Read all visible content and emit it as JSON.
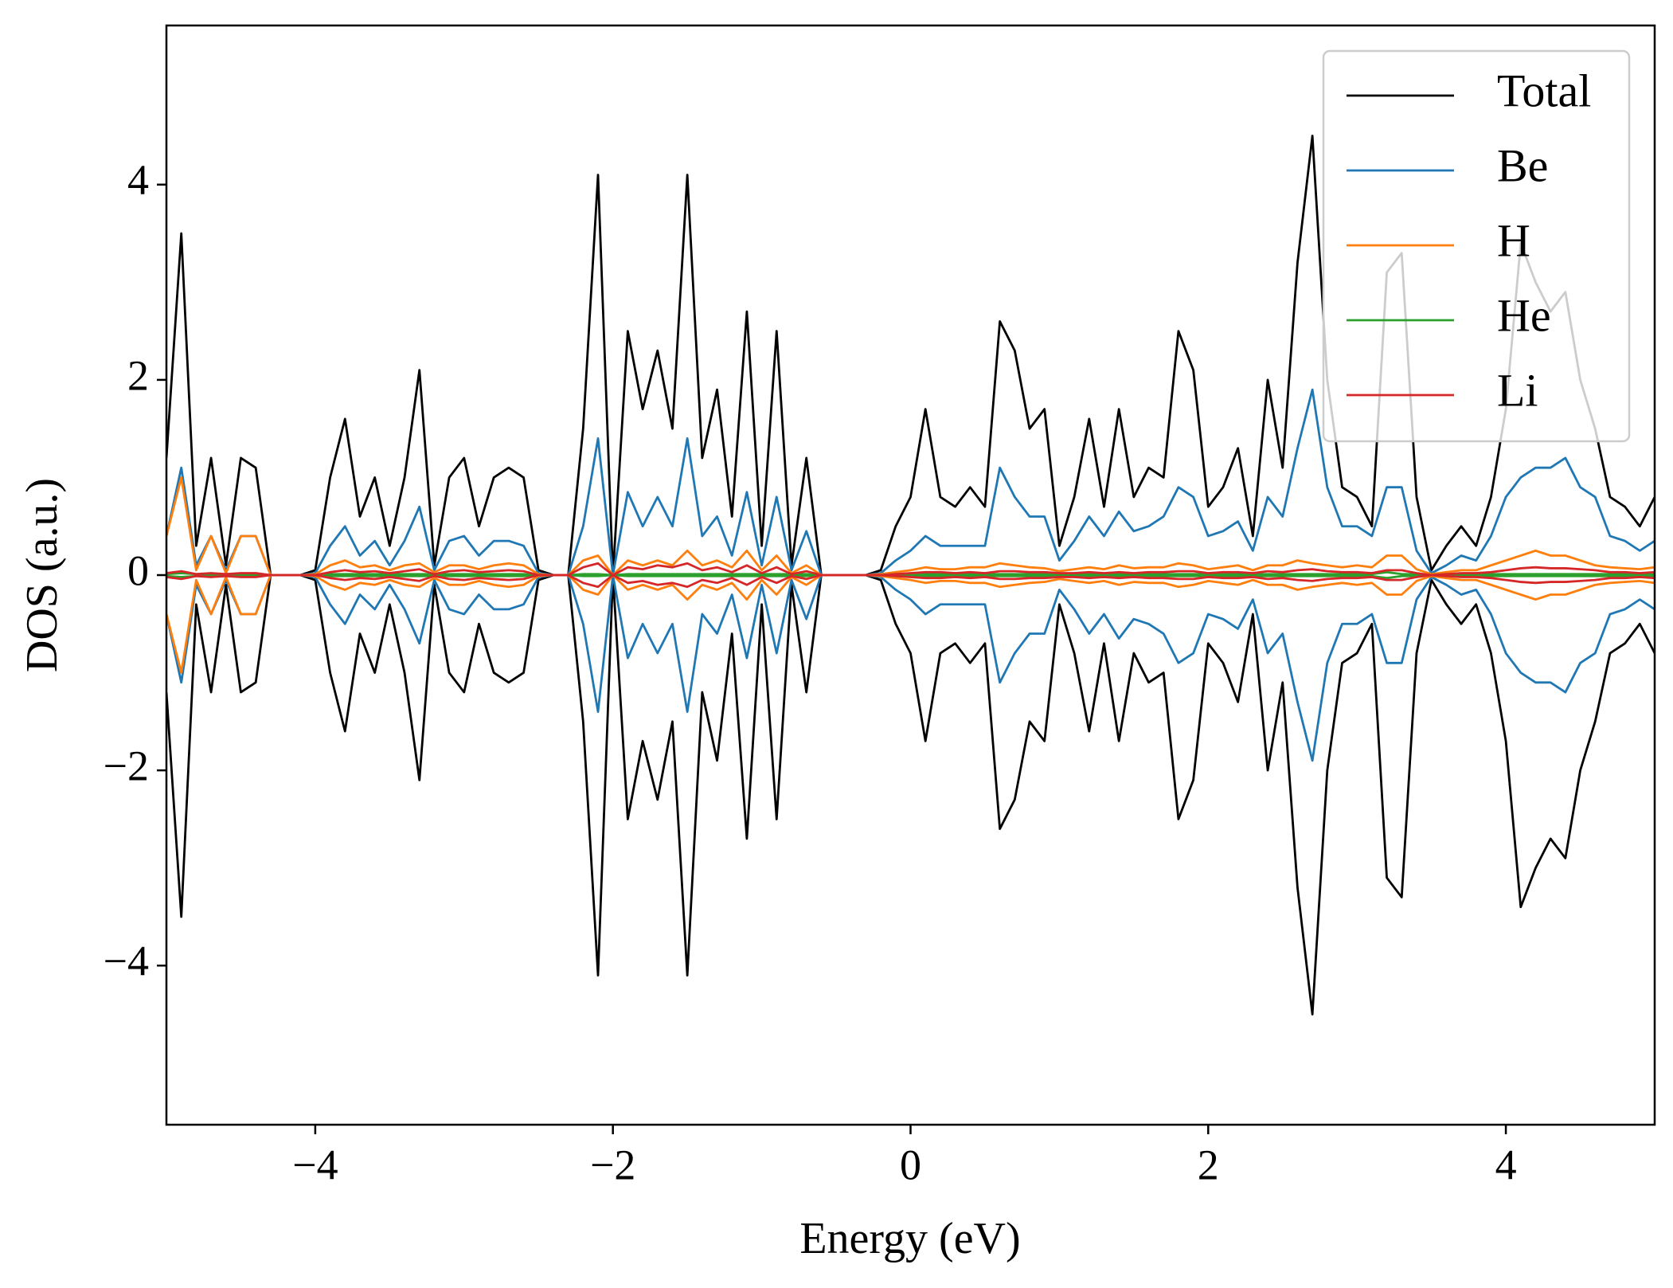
{
  "chart_data": {
    "type": "line",
    "x_label": "Energy (eV)",
    "y_label": "DOS (a.u.)",
    "xlim": [
      -5,
      5
    ],
    "ylim": [
      -5.63,
      5.63
    ],
    "xticks": [
      {
        "value": -4,
        "label": "−4"
      },
      {
        "value": -2,
        "label": "−2"
      },
      0,
      2,
      4
    ],
    "yticks": [
      {
        "value": -4,
        "label": "−4"
      },
      {
        "value": -2,
        "label": "−2"
      },
      0,
      2,
      4
    ],
    "legend": "upper right",
    "x": [
      -5,
      -4.9,
      -4.8,
      -4.7,
      -4.6,
      -4.5,
      -4.4,
      -4.3,
      -4.2,
      -4.1,
      -4,
      -3.9,
      -3.8,
      -3.7,
      -3.6,
      -3.5,
      -3.4,
      -3.3,
      -3.2,
      -3.1,
      -3,
      -2.9,
      -2.8,
      -2.7,
      -2.6,
      -2.5,
      -2.4,
      -2.3,
      -2.2,
      -2.1,
      -2,
      -1.9,
      -1.8,
      -1.7,
      -1.6,
      -1.5,
      -1.4,
      -1.3,
      -1.2,
      -1.1,
      -1,
      -0.9,
      -0.8,
      -0.7,
      -0.6,
      -0.5,
      -0.4,
      -0.3,
      -0.2,
      -0.1,
      0,
      0.1,
      0.2,
      0.3,
      0.4,
      0.5,
      0.6,
      0.7,
      0.8,
      0.9,
      1,
      1.1,
      1.2,
      1.3,
      1.4,
      1.5,
      1.6,
      1.7,
      1.8,
      1.9,
      2,
      2.1,
      2.2,
      2.3,
      2.4,
      2.5,
      2.6,
      2.7,
      2.8,
      2.9,
      3,
      3.1,
      3.2,
      3.3,
      3.4,
      3.5,
      3.6,
      3.7,
      3.8,
      3.9,
      4,
      4.1,
      4.2,
      4.3,
      4.4,
      4.5,
      4.6,
      4.7,
      4.8,
      4.9,
      5
    ],
    "series": [
      {
        "name": "Total",
        "color": "#000000",
        "values": [
          1.2,
          3.5,
          0.3,
          1.2,
          0.1,
          1.2,
          1.1,
          0,
          0,
          0,
          0.05,
          1.0,
          1.6,
          0.6,
          1.0,
          0.3,
          1.0,
          2.1,
          0.1,
          1.0,
          1.2,
          0.5,
          1.0,
          1.1,
          1.0,
          0.05,
          0,
          0,
          1.5,
          4.1,
          0,
          2.5,
          1.7,
          2.3,
          1.5,
          4.1,
          1.2,
          1.9,
          0.6,
          2.7,
          0.3,
          2.5,
          0.1,
          1.2,
          0,
          0,
          0,
          0,
          0.05,
          0.5,
          0.8,
          1.7,
          0.8,
          0.7,
          0.9,
          0.7,
          2.6,
          2.3,
          1.5,
          1.7,
          0.3,
          0.8,
          1.6,
          0.7,
          1.7,
          0.8,
          1.1,
          1.0,
          2.5,
          2.1,
          0.7,
          0.9,
          1.3,
          0.4,
          2.0,
          1.1,
          3.2,
          4.5,
          2.0,
          0.9,
          0.8,
          0.5,
          3.1,
          3.3,
          0.8,
          0.05,
          0.3,
          0.5,
          0.3,
          0.8,
          1.7,
          3.4,
          3.0,
          2.7,
          2.9,
          2.0,
          1.5,
          0.8,
          0.7,
          0.5,
          0.8
        ],
        "values_down": [
          -1.2,
          -3.5,
          -0.3,
          -1.2,
          -0.1,
          -1.2,
          -1.1,
          0,
          0,
          0,
          -0.05,
          -1.0,
          -1.6,
          -0.6,
          -1.0,
          -0.3,
          -1.0,
          -2.1,
          -0.1,
          -1.0,
          -1.2,
          -0.5,
          -1.0,
          -1.1,
          -1.0,
          -0.05,
          0,
          0,
          -1.5,
          -4.1,
          0,
          -2.5,
          -1.7,
          -2.3,
          -1.5,
          -4.1,
          -1.2,
          -1.9,
          -0.6,
          -2.7,
          -0.3,
          -2.5,
          -0.1,
          -1.2,
          0,
          0,
          0,
          0,
          -0.05,
          -0.5,
          -0.8,
          -1.7,
          -0.8,
          -0.7,
          -0.9,
          -0.7,
          -2.6,
          -2.3,
          -1.5,
          -1.7,
          -0.3,
          -0.8,
          -1.6,
          -0.7,
          -1.7,
          -0.8,
          -1.1,
          -1.0,
          -2.5,
          -2.1,
          -0.7,
          -0.9,
          -1.3,
          -0.4,
          -2.0,
          -1.1,
          -3.2,
          -4.5,
          -2.0,
          -0.9,
          -0.8,
          -0.5,
          -3.1,
          -3.3,
          -0.8,
          -0.05,
          -0.3,
          -0.5,
          -0.3,
          -0.8,
          -1.7,
          -3.4,
          -3.0,
          -2.7,
          -2.9,
          -2.0,
          -1.5,
          -0.8,
          -0.7,
          -0.5,
          -0.8
        ]
      },
      {
        "name": "Be",
        "color": "#1f77b4",
        "values": [
          0.4,
          1.1,
          0.1,
          0.4,
          0.05,
          0.4,
          0.4,
          0,
          0,
          0,
          0.02,
          0.3,
          0.5,
          0.2,
          0.35,
          0.1,
          0.35,
          0.7,
          0.05,
          0.35,
          0.4,
          0.2,
          0.35,
          0.35,
          0.3,
          0.02,
          0,
          0,
          0.5,
          1.4,
          0,
          0.85,
          0.5,
          0.8,
          0.5,
          1.4,
          0.4,
          0.6,
          0.2,
          0.85,
          0.1,
          0.8,
          0.05,
          0.45,
          0,
          0,
          0,
          0,
          0.02,
          0.15,
          0.25,
          0.4,
          0.3,
          0.3,
          0.3,
          0.3,
          1.1,
          0.8,
          0.6,
          0.6,
          0.15,
          0.35,
          0.6,
          0.4,
          0.65,
          0.45,
          0.5,
          0.6,
          0.9,
          0.8,
          0.4,
          0.45,
          0.55,
          0.25,
          0.8,
          0.6,
          1.3,
          1.9,
          0.9,
          0.5,
          0.5,
          0.4,
          0.9,
          0.9,
          0.25,
          0.02,
          0.1,
          0.2,
          0.15,
          0.4,
          0.8,
          1.0,
          1.1,
          1.1,
          1.2,
          0.9,
          0.8,
          0.4,
          0.35,
          0.25,
          0.35
        ],
        "values_down": [
          -0.4,
          -1.1,
          -0.1,
          -0.4,
          -0.05,
          -0.4,
          -0.4,
          0,
          0,
          0,
          -0.02,
          -0.3,
          -0.5,
          -0.2,
          -0.35,
          -0.1,
          -0.35,
          -0.7,
          -0.05,
          -0.35,
          -0.4,
          -0.2,
          -0.35,
          -0.35,
          -0.3,
          -0.02,
          0,
          0,
          -0.5,
          -1.4,
          0,
          -0.85,
          -0.5,
          -0.8,
          -0.5,
          -1.4,
          -0.4,
          -0.6,
          -0.2,
          -0.85,
          -0.1,
          -0.8,
          -0.05,
          -0.45,
          0,
          0,
          0,
          0,
          -0.02,
          -0.15,
          -0.25,
          -0.4,
          -0.3,
          -0.3,
          -0.3,
          -0.3,
          -1.1,
          -0.8,
          -0.6,
          -0.6,
          -0.15,
          -0.35,
          -0.6,
          -0.4,
          -0.65,
          -0.45,
          -0.5,
          -0.6,
          -0.9,
          -0.8,
          -0.4,
          -0.45,
          -0.55,
          -0.25,
          -0.8,
          -0.6,
          -1.3,
          -1.9,
          -0.9,
          -0.5,
          -0.5,
          -0.4,
          -0.9,
          -0.9,
          -0.25,
          -0.02,
          -0.1,
          -0.2,
          -0.15,
          -0.4,
          -0.8,
          -1.0,
          -1.1,
          -1.1,
          -1.2,
          -0.9,
          -0.8,
          -0.4,
          -0.35,
          -0.25,
          -0.35
        ]
      },
      {
        "name": "H",
        "color": "#ff7f0e",
        "values": [
          0.4,
          1.0,
          0.05,
          0.4,
          0.02,
          0.4,
          0.4,
          0,
          0,
          0,
          0.01,
          0.1,
          0.15,
          0.08,
          0.1,
          0.05,
          0.1,
          0.12,
          0.03,
          0.1,
          0.1,
          0.06,
          0.1,
          0.12,
          0.1,
          0.01,
          0,
          0,
          0.15,
          0.2,
          0,
          0.15,
          0.1,
          0.15,
          0.1,
          0.25,
          0.1,
          0.15,
          0.08,
          0.25,
          0.05,
          0.2,
          0.02,
          0.1,
          0,
          0,
          0,
          0,
          0.01,
          0.03,
          0.05,
          0.08,
          0.06,
          0.06,
          0.08,
          0.08,
          0.12,
          0.1,
          0.08,
          0.07,
          0.04,
          0.06,
          0.08,
          0.06,
          0.1,
          0.07,
          0.08,
          0.08,
          0.12,
          0.1,
          0.06,
          0.08,
          0.1,
          0.05,
          0.1,
          0.1,
          0.15,
          0.12,
          0.1,
          0.08,
          0.1,
          0.08,
          0.2,
          0.2,
          0.06,
          0.01,
          0.03,
          0.05,
          0.05,
          0.1,
          0.15,
          0.2,
          0.25,
          0.2,
          0.2,
          0.15,
          0.1,
          0.08,
          0.07,
          0.06,
          0.08
        ],
        "values_down": [
          -0.4,
          -1.0,
          -0.05,
          -0.4,
          -0.02,
          -0.4,
          -0.4,
          0,
          0,
          0,
          -0.01,
          -0.1,
          -0.15,
          -0.08,
          -0.1,
          -0.05,
          -0.1,
          -0.12,
          -0.03,
          -0.1,
          -0.1,
          -0.06,
          -0.1,
          -0.12,
          -0.1,
          -0.01,
          0,
          0,
          -0.15,
          -0.2,
          0,
          -0.15,
          -0.1,
          -0.15,
          -0.1,
          -0.25,
          -0.1,
          -0.15,
          -0.08,
          -0.25,
          -0.05,
          -0.2,
          -0.02,
          -0.1,
          0,
          0,
          0,
          0,
          -0.01,
          -0.03,
          -0.05,
          -0.08,
          -0.06,
          -0.06,
          -0.08,
          -0.08,
          -0.12,
          -0.1,
          -0.08,
          -0.07,
          -0.04,
          -0.06,
          -0.08,
          -0.06,
          -0.1,
          -0.07,
          -0.08,
          -0.08,
          -0.12,
          -0.1,
          -0.06,
          -0.08,
          -0.1,
          -0.05,
          -0.1,
          -0.1,
          -0.15,
          -0.12,
          -0.1,
          -0.08,
          -0.1,
          -0.08,
          -0.2,
          -0.2,
          -0.06,
          -0.01,
          -0.03,
          -0.05,
          -0.05,
          -0.1,
          -0.15,
          -0.2,
          -0.25,
          -0.2,
          -0.2,
          -0.15,
          -0.1,
          -0.08,
          -0.07,
          -0.06,
          -0.08
        ]
      },
      {
        "name": "He",
        "color": "#2ca02c",
        "values": [
          0.01,
          0.02,
          0.01,
          0.01,
          0.01,
          0.01,
          0.01,
          0,
          0,
          0,
          0,
          0.01,
          0.01,
          0.01,
          0.01,
          0.01,
          0.01,
          0.01,
          0.01,
          0.01,
          0.01,
          0.01,
          0.01,
          0.01,
          0.01,
          0,
          0,
          0,
          0.01,
          0.01,
          0,
          0.01,
          0.01,
          0.01,
          0.01,
          0.01,
          0.01,
          0.01,
          0.01,
          0.01,
          0.01,
          0.01,
          0.01,
          0.01,
          0,
          0,
          0,
          0,
          0,
          0.01,
          0.01,
          0.01,
          0.01,
          0.01,
          0.01,
          0.01,
          0.01,
          0.01,
          0.01,
          0.01,
          0.01,
          0.01,
          0.01,
          0.01,
          0.01,
          0.01,
          0.01,
          0.01,
          0.01,
          0.01,
          0.01,
          0.01,
          0.01,
          0.01,
          0.01,
          0.01,
          0.01,
          0.01,
          0.01,
          0.01,
          0.01,
          0.01,
          0.03,
          0.01,
          0.01,
          0,
          0.01,
          0.01,
          0.01,
          0.01,
          0.01,
          0.01,
          0.01,
          0.01,
          0.01,
          0.01,
          0.01,
          0.01,
          0.01,
          0.01,
          0.01
        ],
        "values_down": [
          -0.01,
          -0.02,
          -0.01,
          -0.01,
          -0.01,
          -0.01,
          -0.01,
          0,
          0,
          0,
          0,
          -0.01,
          -0.01,
          -0.01,
          -0.01,
          -0.01,
          -0.01,
          -0.01,
          -0.01,
          -0.01,
          -0.01,
          -0.01,
          -0.01,
          -0.01,
          -0.01,
          0,
          0,
          0,
          -0.01,
          -0.01,
          0,
          -0.01,
          -0.01,
          -0.01,
          -0.01,
          -0.01,
          -0.01,
          -0.01,
          -0.01,
          -0.01,
          -0.01,
          -0.01,
          -0.01,
          -0.01,
          0,
          0,
          0,
          0,
          0,
          -0.01,
          -0.01,
          -0.01,
          -0.01,
          -0.01,
          -0.01,
          -0.01,
          -0.01,
          -0.01,
          -0.01,
          -0.01,
          -0.01,
          -0.01,
          -0.01,
          -0.01,
          -0.01,
          -0.01,
          -0.01,
          -0.01,
          -0.01,
          -0.01,
          -0.01,
          -0.01,
          -0.01,
          -0.01,
          -0.01,
          -0.01,
          -0.01,
          -0.01,
          -0.01,
          -0.01,
          -0.01,
          -0.01,
          -0.03,
          -0.01,
          -0.01,
          0,
          -0.01,
          -0.01,
          -0.01,
          -0.01,
          -0.01,
          -0.01,
          -0.01,
          -0.01,
          -0.01,
          -0.01,
          -0.01,
          -0.01,
          -0.01,
          -0.01,
          -0.01
        ]
      },
      {
        "name": "Li",
        "color": "#d62728",
        "values": [
          0.02,
          0.04,
          0.01,
          0.02,
          0.01,
          0.02,
          0.02,
          0,
          0,
          0,
          0,
          0.03,
          0.05,
          0.03,
          0.04,
          0.02,
          0.04,
          0.06,
          0.01,
          0.04,
          0.05,
          0.03,
          0.04,
          0.05,
          0.04,
          0,
          0,
          0,
          0.08,
          0.12,
          0,
          0.08,
          0.06,
          0.1,
          0.08,
          0.12,
          0.05,
          0.08,
          0.03,
          0.1,
          0.02,
          0.08,
          0.01,
          0.04,
          0,
          0,
          0,
          0,
          0,
          0.01,
          0.02,
          0.03,
          0.03,
          0.02,
          0.03,
          0.02,
          0.04,
          0.04,
          0.03,
          0.03,
          0.02,
          0.02,
          0.03,
          0.02,
          0.03,
          0.02,
          0.03,
          0.03,
          0.04,
          0.04,
          0.02,
          0.03,
          0.03,
          0.02,
          0.04,
          0.03,
          0.05,
          0.06,
          0.04,
          0.03,
          0.03,
          0.02,
          0.05,
          0.05,
          0.02,
          0,
          0.01,
          0.02,
          0.02,
          0.03,
          0.05,
          0.07,
          0.08,
          0.07,
          0.07,
          0.06,
          0.05,
          0.03,
          0.03,
          0.02,
          0.03
        ],
        "values_down": [
          -0.02,
          -0.04,
          -0.01,
          -0.02,
          -0.01,
          -0.02,
          -0.02,
          0,
          0,
          0,
          0,
          -0.03,
          -0.05,
          -0.03,
          -0.04,
          -0.02,
          -0.04,
          -0.06,
          -0.01,
          -0.04,
          -0.05,
          -0.03,
          -0.04,
          -0.05,
          -0.04,
          0,
          0,
          0,
          -0.08,
          -0.12,
          0,
          -0.08,
          -0.06,
          -0.1,
          -0.08,
          -0.12,
          -0.05,
          -0.08,
          -0.03,
          -0.1,
          -0.02,
          -0.08,
          -0.01,
          -0.04,
          0,
          0,
          0,
          0,
          0,
          -0.01,
          -0.02,
          -0.03,
          -0.03,
          -0.02,
          -0.03,
          -0.02,
          -0.04,
          -0.04,
          -0.03,
          -0.03,
          -0.02,
          -0.02,
          -0.03,
          -0.02,
          -0.03,
          -0.02,
          -0.03,
          -0.03,
          -0.04,
          -0.04,
          -0.02,
          -0.03,
          -0.03,
          -0.02,
          -0.04,
          -0.03,
          -0.05,
          -0.06,
          -0.04,
          -0.03,
          -0.03,
          -0.02,
          -0.05,
          -0.05,
          -0.02,
          0,
          -0.01,
          -0.02,
          -0.02,
          -0.03,
          -0.05,
          -0.07,
          -0.08,
          -0.07,
          -0.07,
          -0.06,
          -0.05,
          -0.03,
          -0.03,
          -0.02,
          -0.03
        ]
      }
    ]
  }
}
